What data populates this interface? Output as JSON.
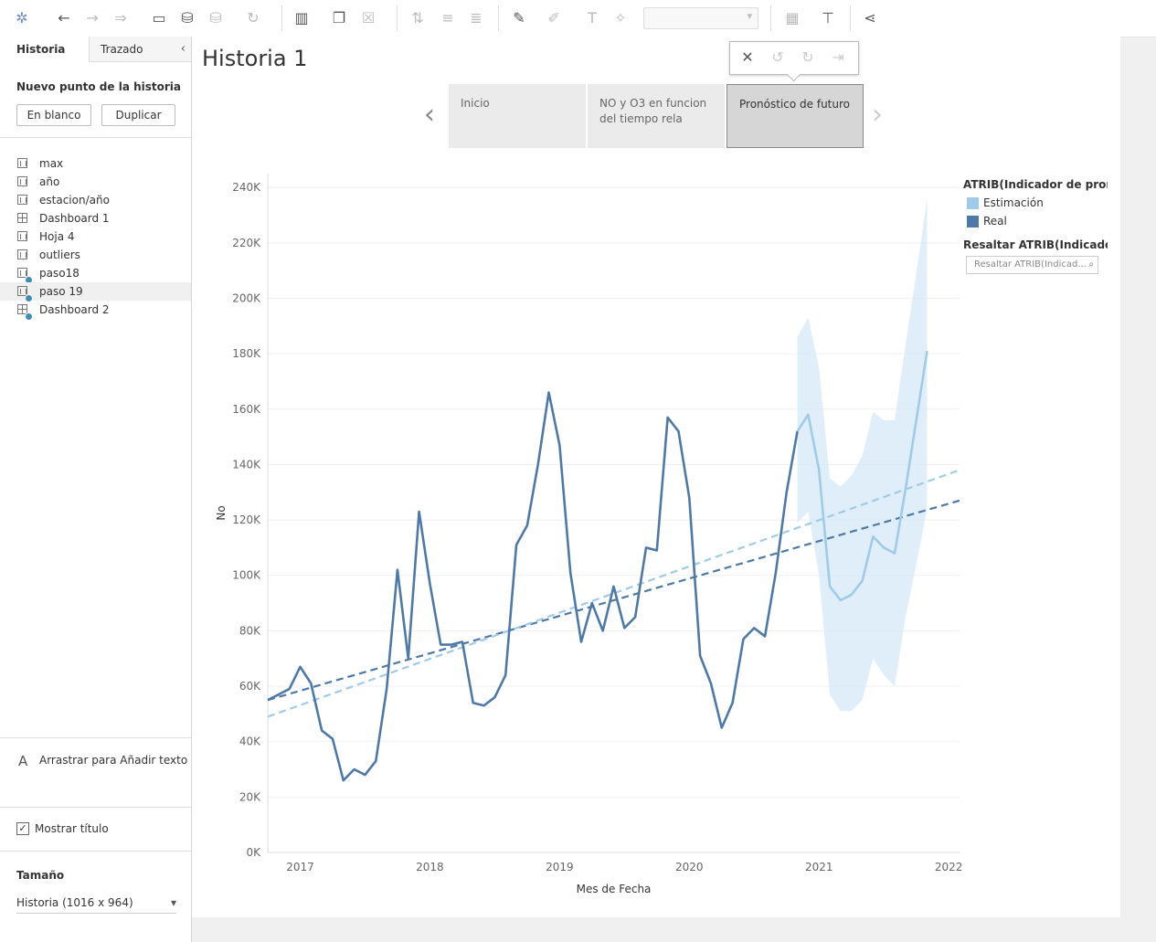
{
  "toolbar": {
    "icons": [
      "tableau-logo-icon",
      "undo-icon",
      "redo-icon",
      "forward-icon",
      "save-icon",
      "new-datasource-icon",
      "datasource-icon",
      "refresh-icon",
      "new-sheet-icon",
      "duplicate-sheet-icon",
      "clear-sheet-icon",
      "swap-icon",
      "sort-asc-icon",
      "sort-desc-icon",
      "highlight-icon",
      "annotate-icon",
      "text-icon",
      "pin-icon",
      "show-me-icon",
      "presentation-icon",
      "share-icon"
    ]
  },
  "sidebar": {
    "tab_historia": "Historia",
    "tab_trazado": "Trazado",
    "new_point_title": "Nuevo punto de la historia",
    "blank_button": "En blanco",
    "duplicate_button": "Duplicar",
    "sheets": [
      {
        "label": "max",
        "type": "sheet"
      },
      {
        "label": "año",
        "type": "sheet"
      },
      {
        "label": "estacion/año",
        "type": "sheet"
      },
      {
        "label": "Dashboard 1",
        "type": "dashboard"
      },
      {
        "label": "Hoja 4",
        "type": "sheet"
      },
      {
        "label": "outliers",
        "type": "sheet"
      },
      {
        "label": "paso18",
        "type": "sheet"
      },
      {
        "label": "paso 19",
        "type": "sheet"
      },
      {
        "label": "Dashboard 2",
        "type": "dashboard"
      }
    ],
    "drag_text": "Arrastrar para Añadir texto",
    "show_title_label": "Mostrar título",
    "size_title": "Tamaño",
    "size_value": "Historia (1016 x 964)"
  },
  "story": {
    "title": "Historia 1",
    "points": [
      {
        "label": "Inicio"
      },
      {
        "label": "NO y O3 en funcion del tiempo rela"
      },
      {
        "label": "Pronóstico de futuro"
      }
    ],
    "active_point": 2,
    "legend": {
      "title": "ATRIB(Indicador de pronó..",
      "items": [
        {
          "label": "Estimación",
          "color": "#a0cbe8"
        },
        {
          "label": "Real",
          "color": "#4e79a7"
        }
      ],
      "highlight_title": "Resaltar ATRIB(Indicador..",
      "highlight_placeholder": "Resaltar ATRIB(Indicad..."
    }
  },
  "chart_data": {
    "type": "line",
    "xlabel": "Mes de Fecha",
    "ylabel": "No",
    "y_ticks": [
      0,
      20000,
      40000,
      60000,
      80000,
      100000,
      120000,
      140000,
      160000,
      180000,
      200000,
      220000,
      240000
    ],
    "y_tick_labels": [
      "0K",
      "20K",
      "40K",
      "60K",
      "80K",
      "100K",
      "120K",
      "140K",
      "160K",
      "180K",
      "200K",
      "220K",
      "240K"
    ],
    "x_ticks": [
      "2017-01",
      "2018-01",
      "2019-01",
      "2020-01",
      "2021-01",
      "2022-01"
    ],
    "x_tick_labels": [
      "2017",
      "2018",
      "2019",
      "2020",
      "2021",
      "2022"
    ],
    "ylim": [
      0,
      245000
    ],
    "xlim": [
      "2016-10",
      "2022-02"
    ],
    "grid": "horizontal",
    "series": [
      {
        "name": "Real",
        "color": "#4e79a7",
        "points": [
          [
            "2016-10",
            55000
          ],
          [
            "2016-11",
            57000
          ],
          [
            "2016-12",
            59000
          ],
          [
            "2017-01",
            67000
          ],
          [
            "2017-02",
            61000
          ],
          [
            "2017-03",
            44000
          ],
          [
            "2017-04",
            41000
          ],
          [
            "2017-05",
            26000
          ],
          [
            "2017-06",
            30000
          ],
          [
            "2017-07",
            28000
          ],
          [
            "2017-08",
            33000
          ],
          [
            "2017-09",
            59000
          ],
          [
            "2017-10",
            102000
          ],
          [
            "2017-11",
            70000
          ],
          [
            "2017-12",
            123000
          ],
          [
            "2018-01",
            97000
          ],
          [
            "2018-02",
            75000
          ],
          [
            "2018-03",
            75000
          ],
          [
            "2018-04",
            76000
          ],
          [
            "2018-05",
            54000
          ],
          [
            "2018-06",
            53000
          ],
          [
            "2018-07",
            56000
          ],
          [
            "2018-08",
            64000
          ],
          [
            "2018-09",
            111000
          ],
          [
            "2018-10",
            118000
          ],
          [
            "2018-11",
            140000
          ],
          [
            "2018-12",
            166000
          ],
          [
            "2019-01",
            147000
          ],
          [
            "2019-02",
            101000
          ],
          [
            "2019-03",
            76000
          ],
          [
            "2019-04",
            90000
          ],
          [
            "2019-05",
            80000
          ],
          [
            "2019-06",
            96000
          ],
          [
            "2019-07",
            81000
          ],
          [
            "2019-08",
            85000
          ],
          [
            "2019-09",
            110000
          ],
          [
            "2019-10",
            109000
          ],
          [
            "2019-11",
            157000
          ],
          [
            "2019-12",
            152000
          ],
          [
            "2020-01",
            128000
          ],
          [
            "2020-02",
            71000
          ],
          [
            "2020-03",
            61000
          ],
          [
            "2020-04",
            45000
          ],
          [
            "2020-05",
            54000
          ],
          [
            "2020-06",
            77000
          ],
          [
            "2020-07",
            81000
          ],
          [
            "2020-08",
            78000
          ],
          [
            "2020-09",
            101000
          ],
          [
            "2020-10",
            130000
          ],
          [
            "2020-11",
            152000
          ]
        ]
      },
      {
        "name": "Estimación",
        "color": "#a0cbe8",
        "points": [
          [
            "2020-11",
            152000
          ],
          [
            "2020-12",
            158000
          ],
          [
            "2021-01",
            138000
          ],
          [
            "2021-02",
            96000
          ],
          [
            "2021-03",
            91000
          ],
          [
            "2021-04",
            93000
          ],
          [
            "2021-05",
            98000
          ],
          [
            "2021-06",
            114000
          ],
          [
            "2021-07",
            110000
          ],
          [
            "2021-08",
            108000
          ],
          [
            "2021-09",
            131000
          ],
          [
            "2021-10",
            156000
          ],
          [
            "2021-11",
            181000
          ]
        ],
        "band_upper": [
          [
            "2020-11",
            186000
          ],
          [
            "2020-12",
            193000
          ],
          [
            "2021-01",
            175000
          ],
          [
            "2021-02",
            135000
          ],
          [
            "2021-03",
            132000
          ],
          [
            "2021-04",
            136000
          ],
          [
            "2021-05",
            143000
          ],
          [
            "2021-06",
            159000
          ],
          [
            "2021-07",
            156000
          ],
          [
            "2021-08",
            156000
          ],
          [
            "2021-09",
            183000
          ],
          [
            "2021-10",
            209000
          ],
          [
            "2021-11",
            236000
          ]
        ],
        "band_lower": [
          [
            "2020-11",
            119000
          ],
          [
            "2020-12",
            123000
          ],
          [
            "2021-01",
            100000
          ],
          [
            "2021-02",
            57000
          ],
          [
            "2021-03",
            51000
          ],
          [
            "2021-04",
            51000
          ],
          [
            "2021-05",
            55000
          ],
          [
            "2021-06",
            70000
          ],
          [
            "2021-07",
            64000
          ],
          [
            "2021-08",
            60000
          ],
          [
            "2021-09",
            85000
          ],
          [
            "2021-10",
            104000
          ],
          [
            "2021-11",
            124000
          ]
        ]
      }
    ],
    "trend_lines": [
      {
        "series": "Real",
        "color": "#4e79a7",
        "style": "dashed",
        "points": [
          [
            "2016-10",
            55000
          ],
          [
            "2022-02",
            127000
          ]
        ]
      },
      {
        "series": "Estimación",
        "color": "#a0cbe8",
        "style": "dashed",
        "points": [
          [
            "2016-10",
            49000
          ],
          [
            "2022-02",
            138000
          ]
        ]
      }
    ]
  }
}
